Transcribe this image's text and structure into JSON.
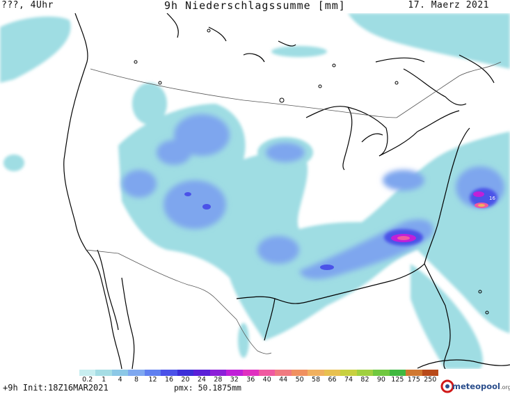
{
  "header": {
    "left": "???, 4Uhr",
    "center": "9h Niederschlagssumme [mm]",
    "right": "17. Maerz 2021"
  },
  "legend": {
    "labels": [
      "0.2",
      "1",
      "4",
      "8",
      "12",
      "16",
      "20",
      "24",
      "28",
      "32",
      "36",
      "40",
      "44",
      "50",
      "58",
      "66",
      "74",
      "82",
      "90",
      "125",
      "175",
      "250"
    ],
    "colors": [
      "#c8eef0",
      "#a5dde4",
      "#8cc8e6",
      "#7fa8f0",
      "#6080f0",
      "#4b52e8",
      "#3c2ed8",
      "#5a20d8",
      "#8c20d8",
      "#c020d8",
      "#e030c0",
      "#f05aa0",
      "#f07a80",
      "#f09060",
      "#f0b060",
      "#e8c050",
      "#c8d040",
      "#a0d040",
      "#70c840",
      "#40b840",
      "#d07830",
      "#b84a1a"
    ]
  },
  "map": {
    "max_value_label": "16"
  },
  "footer": {
    "init": "+9h Init:18Z16MAR2021",
    "pmx": "pmx: 50.1875mm"
  },
  "logo": {
    "name": "meteopool",
    "tld": ".org"
  }
}
